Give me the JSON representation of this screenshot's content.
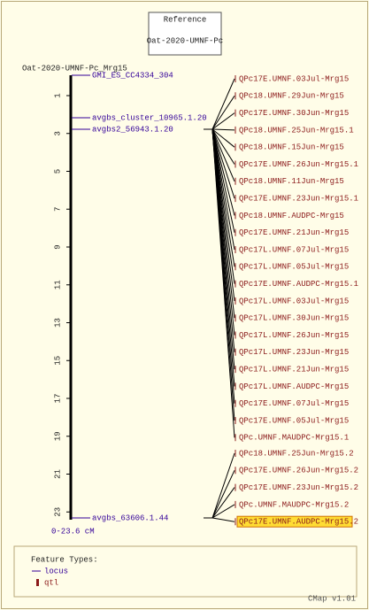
{
  "reference": {
    "title": "Reference",
    "map": "Oat-2020-UMNF-Pc"
  },
  "map": {
    "name": "Oat-2020-UMNF-Pc_Mrg15",
    "ticks": [
      "1",
      "3",
      "5",
      "7",
      "9",
      "11",
      "13",
      "15",
      "17",
      "19",
      "21",
      "23"
    ],
    "range": "0-23.6 cM"
  },
  "loci": [
    "GMI_ES_CC4334_304",
    "avgbs_cluster_10965.1.20",
    "avgbs2_56943.1.20",
    "avgbs_63606.1.44"
  ],
  "qtls": {
    "group1": [
      "QPc17E.UMNF.03Jul-Mrg15",
      "QPc18.UMNF.29Jun-Mrg15",
      "QPc17E.UMNF.30Jun-Mrg15",
      "QPc18.UMNF.25Jun-Mrg15.1",
      "QPc18.UMNF.15Jun-Mrg15",
      "QPc17E.UMNF.26Jun-Mrg15.1",
      "QPc18.UMNF.11Jun-Mrg15",
      "QPc17E.UMNF.23Jun-Mrg15.1",
      "QPc18.UMNF.AUDPC-Mrg15",
      "QPc17E.UMNF.21Jun-Mrg15",
      "QPc17L.UMNF.07Jul-Mrg15",
      "QPc17L.UMNF.05Jul-Mrg15",
      "QPc17E.UMNF.AUDPC-Mrg15.1",
      "QPc17L.UMNF.03Jul-Mrg15",
      "QPc17L.UMNF.30Jun-Mrg15",
      "QPc17L.UMNF.26Jun-Mrg15",
      "QPc17L.UMNF.23Jun-Mrg15",
      "QPc17L.UMNF.21Jun-Mrg15",
      "QPc17L.UMNF.AUDPC-Mrg15",
      "QPc17E.UMNF.07Jul-Mrg15",
      "QPc17E.UMNF.05Jul-Mrg15",
      "QPc.UMNF.MAUDPC-Mrg15.1"
    ],
    "group2": [
      "QPc18.UMNF.25Jun-Mrg15.2",
      "QPc17E.UMNF.26Jun-Mrg15.2",
      "QPc17E.UMNF.23Jun-Mrg15.2",
      "QPc.UMNF.MAUDPC-Mrg15.2",
      "QPc17E.UMNF.AUDPC-Mrg15.2"
    ]
  },
  "legend": {
    "title": "Feature Types:",
    "items": [
      "locus",
      "qtl"
    ]
  },
  "footer": "CMap v1.01"
}
